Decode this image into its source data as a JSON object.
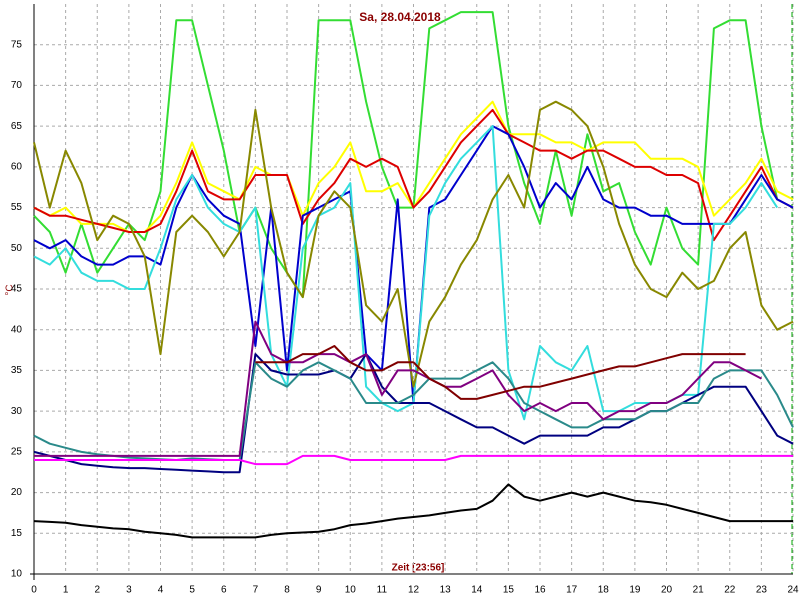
{
  "chart_data": {
    "type": "line",
    "title": "Sa, 28.04.2018",
    "ylabel": "°C",
    "xlabel": "Zeit [23:56]",
    "xlim": [
      0,
      24
    ],
    "ylim": [
      10,
      80
    ],
    "xticks": [
      0,
      1,
      2,
      3,
      4,
      5,
      6,
      7,
      8,
      9,
      10,
      11,
      12,
      13,
      14,
      15,
      16,
      17,
      18,
      19,
      20,
      21,
      22,
      23,
      24
    ],
    "yticks": [
      10,
      15,
      20,
      25,
      30,
      35,
      40,
      45,
      50,
      55,
      60,
      65,
      70,
      75
    ],
    "grid": true,
    "x": [
      0,
      0.5,
      1,
      1.5,
      2,
      2.5,
      3,
      3.5,
      4,
      4.5,
      5,
      5.5,
      6,
      6.5,
      7,
      7.5,
      8,
      8.5,
      9,
      9.5,
      10,
      10.5,
      11,
      11.5,
      12,
      12.5,
      13,
      13.5,
      14,
      14.5,
      15,
      15.5,
      16,
      16.5,
      17,
      17.5,
      18,
      18.5,
      19,
      19.5,
      20,
      20.5,
      21,
      21.5,
      22,
      22.5,
      23,
      23.5,
      24
    ],
    "series": [
      {
        "color": "#33dd33",
        "values": [
          54,
          52,
          47,
          53,
          47,
          50,
          53,
          51,
          57,
          78,
          78,
          70,
          62,
          52,
          55,
          50,
          47,
          44,
          78,
          78,
          78,
          68,
          60,
          55,
          55,
          77,
          78,
          79,
          79,
          79,
          65,
          58,
          53,
          62,
          54,
          64,
          57,
          58,
          52,
          48,
          55,
          50,
          48,
          77,
          78,
          78,
          65,
          56,
          null
        ]
      },
      {
        "color": "#ffff00",
        "values": [
          55,
          54,
          55,
          53,
          53,
          53,
          52,
          52,
          54,
          58,
          63,
          58,
          57,
          56,
          60,
          59,
          59,
          54,
          58,
          60,
          63,
          57,
          57,
          58,
          55,
          58,
          61,
          64,
          66,
          68,
          64,
          64,
          64,
          63,
          63,
          62,
          63,
          63,
          63,
          61,
          61,
          61,
          60,
          54,
          56,
          58,
          61,
          57,
          56
        ]
      },
      {
        "color": "#dd0000",
        "values": [
          55,
          54,
          54,
          53.5,
          53,
          52.5,
          52,
          52,
          53,
          57,
          62,
          57,
          56,
          56,
          59,
          59,
          59,
          53,
          56,
          58,
          61,
          60,
          61,
          60,
          55,
          57,
          60,
          63,
          65,
          67,
          64,
          63,
          62,
          62,
          61,
          62,
          62,
          61,
          60,
          60,
          59,
          59,
          58,
          51,
          54,
          57,
          60,
          56,
          55
        ]
      },
      {
        "color": "#0000cc",
        "values": [
          51,
          50,
          51,
          49,
          48,
          48,
          49,
          49,
          48,
          55,
          59,
          56,
          54,
          53,
          38,
          55,
          35,
          54,
          55,
          56,
          57,
          37,
          35,
          56,
          31,
          55,
          56,
          59,
          62,
          65,
          64,
          60,
          55,
          58,
          56,
          60,
          56,
          55,
          55,
          54,
          54,
          53,
          53,
          53,
          53,
          56,
          59,
          56,
          55
        ]
      },
      {
        "color": "#33dddd",
        "values": [
          49,
          48,
          50,
          47,
          46,
          46,
          45,
          45,
          50,
          56,
          59,
          55,
          53,
          52,
          55,
          37,
          33,
          50,
          54,
          55,
          58,
          33,
          31,
          30,
          31,
          54,
          58,
          61,
          63,
          65,
          35,
          29,
          38,
          36,
          35,
          38,
          30,
          30,
          31,
          31,
          31,
          32,
          32,
          53,
          53,
          55,
          58,
          55,
          null
        ]
      },
      {
        "color": "#888800",
        "values": [
          63,
          55,
          62,
          58,
          51,
          54,
          53,
          49,
          37,
          52,
          54,
          52,
          49,
          52,
          67,
          55,
          47,
          44,
          54,
          57,
          55,
          43,
          41,
          45,
          33,
          41,
          44,
          48,
          51,
          56,
          59,
          55,
          67,
          68,
          67,
          65,
          60,
          53,
          48,
          45,
          44,
          47,
          45,
          46,
          50,
          52,
          43,
          40,
          41
        ]
      },
      {
        "color": "#000080",
        "values": [
          25,
          24.5,
          24,
          23.5,
          23.3,
          23.1,
          23,
          23,
          22.9,
          22.8,
          22.7,
          22.6,
          22.5,
          22.5,
          37,
          35,
          34.5,
          34.5,
          34.5,
          35,
          34,
          37,
          33,
          31,
          31,
          31,
          30,
          29,
          28,
          28,
          27,
          26,
          27,
          27,
          27,
          27,
          28,
          28,
          29,
          30,
          30,
          31,
          32,
          33,
          33,
          33,
          30,
          27,
          26
        ]
      },
      {
        "color": "#2a8a8a",
        "values": [
          27,
          26,
          25.5,
          25,
          24.7,
          24.5,
          24.3,
          24.2,
          24.1,
          24,
          24.2,
          24.1,
          24,
          24,
          36,
          34,
          33,
          35,
          36,
          35,
          34,
          31,
          31,
          31,
          32,
          34,
          34,
          34,
          35,
          36,
          34,
          31,
          30,
          29,
          28,
          28,
          29,
          29,
          29,
          30,
          30,
          31,
          31,
          34,
          35,
          35,
          35,
          32,
          28
        ]
      },
      {
        "color": "#800080",
        "values": [
          24.5,
          24.5,
          24.5,
          24.5,
          24.5,
          24.5,
          24.5,
          24.5,
          24.5,
          24.5,
          24.5,
          24.5,
          24.5,
          24.5,
          41,
          37,
          36,
          36,
          37,
          37,
          36,
          37,
          32,
          35,
          35,
          34,
          33,
          33,
          34,
          35,
          32,
          30,
          31,
          30,
          31,
          31,
          29,
          30,
          30,
          31,
          31,
          32,
          34,
          36,
          36,
          35,
          34,
          null,
          null
        ]
      },
      {
        "color": "#800000",
        "values": [
          null,
          null,
          null,
          null,
          null,
          null,
          null,
          null,
          null,
          null,
          null,
          null,
          null,
          null,
          36,
          36,
          36,
          37,
          37,
          38,
          36,
          35,
          35,
          36,
          36,
          34,
          33,
          31.5,
          31.5,
          32,
          32.5,
          33,
          33,
          33.5,
          34,
          34.5,
          35,
          35.5,
          35.5,
          36,
          36.5,
          37,
          37,
          37,
          37,
          37,
          null,
          null,
          null
        ]
      },
      {
        "color": "#ff00ff",
        "values": [
          24,
          24,
          24,
          24,
          24,
          24,
          24,
          24,
          24,
          24,
          24,
          24,
          24,
          24,
          23.5,
          23.5,
          23.5,
          24.5,
          24.5,
          24.5,
          24,
          24,
          24,
          24,
          24,
          24,
          24,
          24.5,
          24.5,
          24.5,
          24.5,
          24.5,
          24.5,
          24.5,
          24.5,
          24.5,
          24.5,
          24.5,
          24.5,
          24.5,
          24.5,
          24.5,
          24.5,
          24.5,
          24.5,
          24.5,
          24.5,
          24.5,
          24.5
        ]
      },
      {
        "color": "#000000",
        "values": [
          16.5,
          16.4,
          16.3,
          16,
          15.8,
          15.6,
          15.5,
          15.2,
          15,
          14.8,
          14.5,
          14.5,
          14.5,
          14.5,
          14.5,
          14.8,
          15,
          15.1,
          15.2,
          15.5,
          16,
          16.2,
          16.5,
          16.8,
          17,
          17.2,
          17.5,
          17.8,
          18,
          19,
          21,
          19.5,
          19,
          19.5,
          20,
          19.5,
          20,
          19.5,
          19,
          18.8,
          18.5,
          18,
          17.5,
          17,
          16.5,
          16.5,
          16.5,
          16.5,
          16.5
        ]
      }
    ]
  }
}
